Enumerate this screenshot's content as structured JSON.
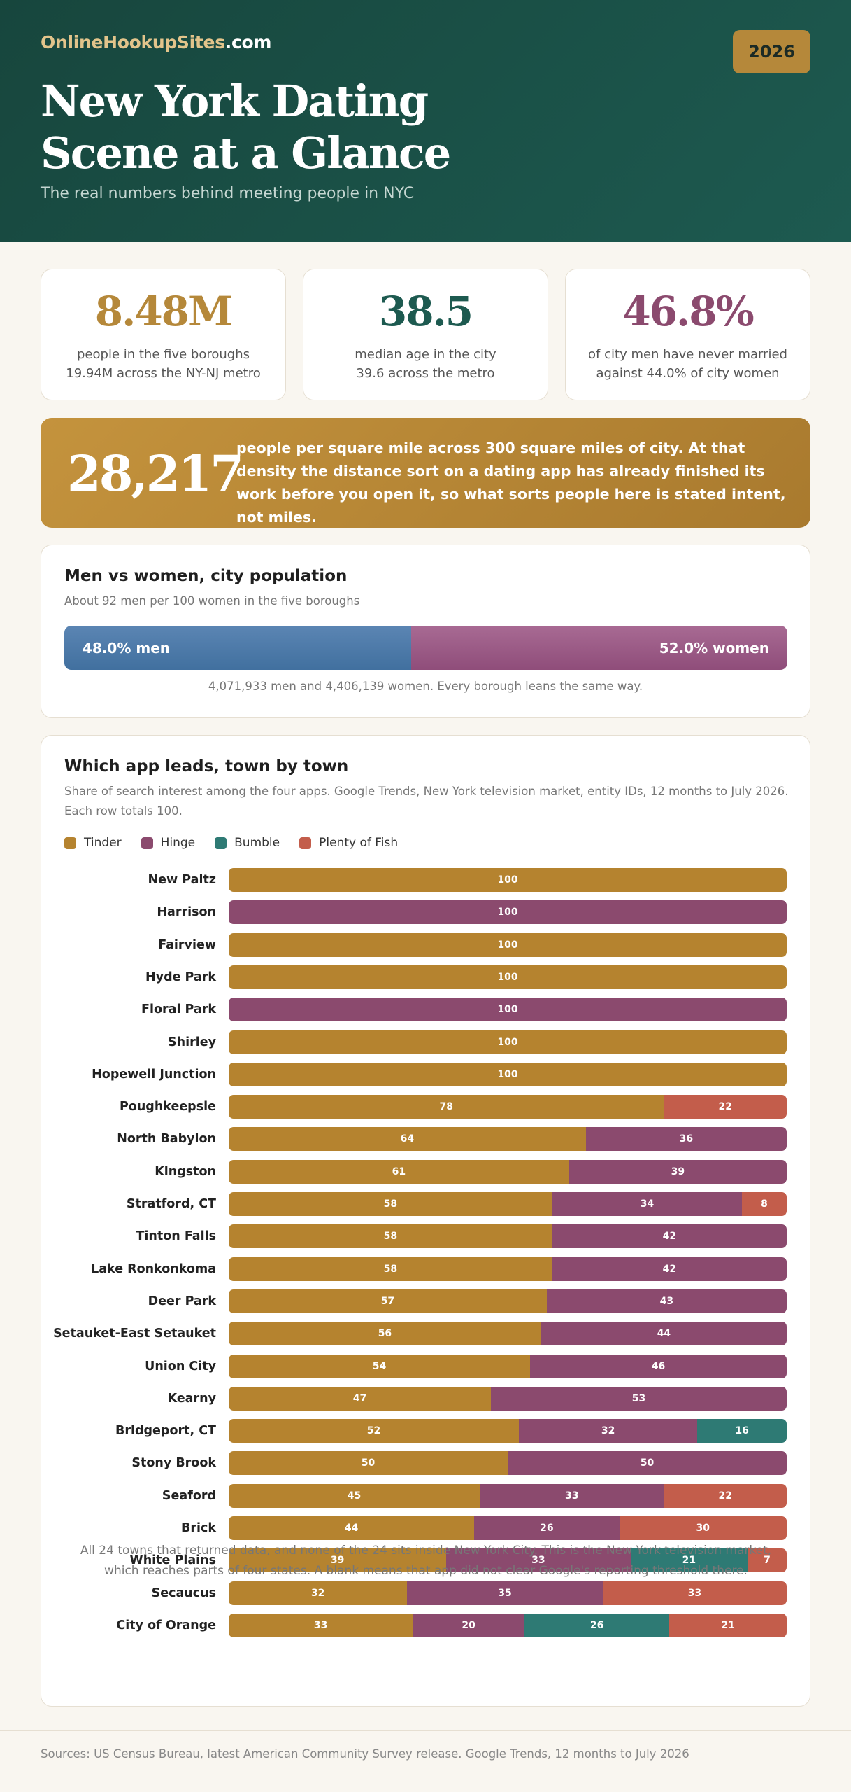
{
  "header": {
    "brand_main": "OnlineHookupSites",
    "brand_suffix": ".com",
    "year": "2026",
    "title": "New York Dating Scene at a Glance",
    "subtitle": "The real numbers behind meeting people in NYC"
  },
  "stats": [
    {
      "value": "8.48M",
      "line1": "people in the five boroughs",
      "line2": "19.94M across the NY-NJ metro",
      "color": "#b5883a"
    },
    {
      "value": "38.5",
      "line1": "median age in the city",
      "line2": "39.6 across the metro",
      "color": "#1d5a50"
    },
    {
      "value": "46.8%",
      "line1": "of city men have never married",
      "line2": "against 44.0% of city women",
      "color": "#8b4a6e"
    }
  ],
  "density": {
    "value": "28,217",
    "text": "people per square mile across 300 square miles of city. At that density the distance sort on a dating app has already finished its work before you open it, so what sorts people here is stated intent, not miles."
  },
  "gender": {
    "title": "Men vs women, city population",
    "subtitle": "About 92 men per 100 women in the five boroughs",
    "men_label": "48.0% men",
    "women_label": "52.0% women",
    "men_pct": 48.0,
    "women_pct": 52.0,
    "men_color": "#4a79a8",
    "women_color": "#985a85",
    "note": "4,071,933 men and 4,406,139 women. Every borough leans the same way."
  },
  "apps_chart": {
    "title": "Which app leads, town by town",
    "subtitle": "Share of search interest among the four apps. Google Trends, New York television market, entity IDs, 12 months to July 2026. Each row totals 100.",
    "note": "All 24 towns that returned data, and none of the 24 sits inside New York City. This is the New York television market, which reaches parts of four states. A blank means that app did not clear Google's reporting threshold there."
  },
  "chart_data": {
    "type": "bar",
    "orientation": "horizontal",
    "stacked": true,
    "categories": [
      "New Paltz",
      "Harrison",
      "Fairview",
      "Hyde Park",
      "Floral Park",
      "Shirley",
      "Hopewell Junction",
      "Poughkeepsie",
      "North Babylon",
      "Kingston",
      "Stratford, CT",
      "Tinton Falls",
      "Lake Ronkonkoma",
      "Deer Park",
      "Setauket-East Setauket",
      "Union City",
      "Kearny",
      "Bridgeport, CT",
      "Stony Brook",
      "Seaford",
      "Brick",
      "White Plains",
      "Secaucus",
      "City of Orange"
    ],
    "series": [
      {
        "name": "Tinder",
        "color": "#b5832f",
        "values": [
          100,
          0,
          100,
          100,
          0,
          100,
          100,
          78,
          64,
          61,
          58,
          58,
          58,
          57,
          56,
          54,
          47,
          52,
          50,
          45,
          44,
          39,
          32,
          33
        ]
      },
      {
        "name": "Hinge",
        "color": "#8b4a6e",
        "values": [
          0,
          100,
          0,
          0,
          100,
          0,
          0,
          0,
          36,
          39,
          34,
          42,
          42,
          43,
          44,
          46,
          53,
          32,
          50,
          33,
          26,
          33,
          35,
          20
        ]
      },
      {
        "name": "Bumble",
        "color": "#2e7a74",
        "values": [
          0,
          0,
          0,
          0,
          0,
          0,
          0,
          0,
          0,
          0,
          0,
          0,
          0,
          0,
          0,
          0,
          0,
          16,
          0,
          0,
          0,
          21,
          0,
          26
        ]
      },
      {
        "name": "Plenty of Fish",
        "color": "#c35d4b",
        "values": [
          0,
          0,
          0,
          0,
          0,
          0,
          0,
          22,
          0,
          0,
          8,
          0,
          0,
          0,
          0,
          0,
          0,
          0,
          0,
          22,
          30,
          7,
          33,
          21
        ]
      }
    ],
    "xlim": [
      0,
      100
    ],
    "legend": "top-left"
  },
  "footer": {
    "sources": "Sources: US Census Bureau, latest American Community Survey release. Google Trends, 12 months to July 2026"
  }
}
